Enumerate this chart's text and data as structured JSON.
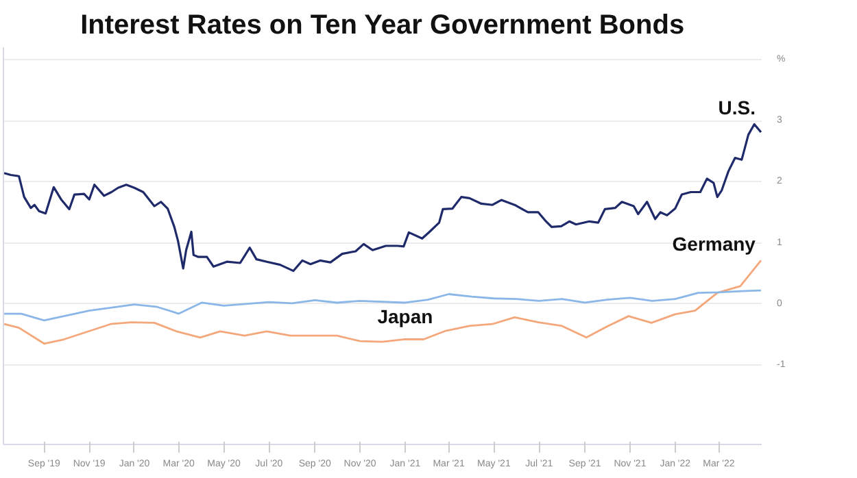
{
  "chart_data": {
    "type": "line",
    "title": "Interest Rates on Ten Year Government Bonds",
    "xlim": [
      "2019-07-08",
      "2022-04-28"
    ],
    "xticks": [
      {
        "value": "2019-09-01",
        "label": "Sep '19"
      },
      {
        "value": "2019-11-01",
        "label": "Nov '19"
      },
      {
        "value": "2020-01-01",
        "label": "Jan '20"
      },
      {
        "value": "2020-03-01",
        "label": "Mar '20"
      },
      {
        "value": "2020-05-01",
        "label": "May '20"
      },
      {
        "value": "2020-07-01",
        "label": "Jul '20"
      },
      {
        "value": "2020-09-01",
        "label": "Sep '20"
      },
      {
        "value": "2020-11-01",
        "label": "Nov '20"
      },
      {
        "value": "2021-01-01",
        "label": "Jan '21"
      },
      {
        "value": "2021-03-01",
        "label": "Mar '21"
      },
      {
        "value": "2021-05-01",
        "label": "May '21"
      },
      {
        "value": "2021-07-01",
        "label": "Jul '21"
      },
      {
        "value": "2021-09-01",
        "label": "Sep '21"
      },
      {
        "value": "2021-11-01",
        "label": "Nov '21"
      },
      {
        "value": "2022-01-01",
        "label": "Jan '22"
      },
      {
        "value": "2022-03-01",
        "label": "Mar '22"
      }
    ],
    "ylim": [
      -2.3,
      4.2
    ],
    "yticks": [
      -1,
      0,
      1,
      2,
      3,
      {
        "value": 4,
        "label": "%"
      }
    ],
    "grid": "y",
    "marker": "none",
    "line_style": "solid",
    "series": [
      {
        "name": "U.S.",
        "color": "#1f2a6b",
        "x": [
          "2019-07-09",
          "2019-07-18",
          "2019-07-29",
          "2019-08-05",
          "2019-08-14",
          "2019-08-19",
          "2019-08-25",
          "2019-09-03",
          "2019-09-14",
          "2019-09-24",
          "2019-10-05",
          "2019-10-12",
          "2019-10-25",
          "2019-11-01",
          "2019-11-08",
          "2019-11-21",
          "2019-12-01",
          "2019-12-10",
          "2019-12-21",
          "2020-01-01",
          "2020-01-13",
          "2020-01-28",
          "2020-02-06",
          "2020-02-15",
          "2020-02-24",
          "2020-02-29",
          "2020-03-07",
          "2020-03-11",
          "2020-03-18",
          "2020-03-21",
          "2020-03-27",
          "2020-04-08",
          "2020-04-17",
          "2020-05-05",
          "2020-05-23",
          "2020-06-05",
          "2020-06-14",
          "2020-06-28",
          "2020-07-16",
          "2020-08-03",
          "2020-08-15",
          "2020-08-26",
          "2020-09-08",
          "2020-09-22",
          "2020-10-08",
          "2020-10-26",
          "2020-11-06",
          "2020-11-18",
          "2020-12-06",
          "2020-12-22",
          "2020-12-30",
          "2021-01-06",
          "2021-01-24",
          "2021-02-03",
          "2021-02-16",
          "2021-02-21",
          "2021-03-06",
          "2021-03-18",
          "2021-03-29",
          "2021-04-14",
          "2021-04-29",
          "2021-05-11",
          "2021-05-29",
          "2021-06-16",
          "2021-06-30",
          "2021-07-09",
          "2021-07-18",
          "2021-07-31",
          "2021-08-11",
          "2021-08-20",
          "2021-09-07",
          "2021-09-19",
          "2021-09-28",
          "2021-10-12",
          "2021-10-21",
          "2021-11-06",
          "2021-11-12",
          "2021-11-24",
          "2021-12-05",
          "2021-12-12",
          "2021-12-21",
          "2022-01-01",
          "2022-01-10",
          "2022-01-22",
          "2022-02-04",
          "2022-02-13",
          "2022-02-22",
          "2022-02-27",
          "2022-03-05",
          "2022-03-14",
          "2022-03-23",
          "2022-04-01",
          "2022-04-10",
          "2022-04-18",
          "2022-04-27"
        ],
        "values": [
          2.14,
          2.11,
          2.09,
          1.75,
          1.57,
          1.62,
          1.52,
          1.48,
          1.91,
          1.71,
          1.55,
          1.79,
          1.8,
          1.71,
          1.95,
          1.77,
          1.83,
          1.9,
          1.95,
          1.9,
          1.83,
          1.6,
          1.67,
          1.56,
          1.26,
          1.03,
          0.58,
          0.88,
          1.18,
          0.8,
          0.77,
          0.77,
          0.61,
          0.69,
          0.67,
          0.92,
          0.73,
          0.69,
          0.64,
          0.54,
          0.71,
          0.65,
          0.71,
          0.68,
          0.82,
          0.86,
          0.98,
          0.88,
          0.95,
          0.95,
          0.94,
          1.17,
          1.07,
          1.18,
          1.33,
          1.55,
          1.56,
          1.75,
          1.73,
          1.64,
          1.62,
          1.7,
          1.62,
          1.5,
          1.5,
          1.37,
          1.26,
          1.27,
          1.35,
          1.3,
          1.35,
          1.33,
          1.55,
          1.57,
          1.67,
          1.6,
          1.47,
          1.67,
          1.39,
          1.5,
          1.45,
          1.56,
          1.79,
          1.83,
          1.83,
          2.05,
          1.98,
          1.75,
          1.86,
          2.17,
          2.39,
          2.36,
          2.77,
          2.94,
          2.81
        ]
      },
      {
        "name": "Germany",
        "color": "#f4a77a",
        "x": [
          "2019-07-09",
          "2019-07-29",
          "2019-09-01",
          "2019-09-28",
          "2019-11-30",
          "2019-12-28",
          "2020-01-28",
          "2020-02-27",
          "2020-03-30",
          "2020-04-26",
          "2020-05-29",
          "2020-06-28",
          "2020-07-30",
          "2020-10-01",
          "2020-11-01",
          "2020-12-01",
          "2020-12-30",
          "2021-01-26",
          "2021-02-25",
          "2021-03-29",
          "2021-04-29",
          "2021-05-29",
          "2021-06-30",
          "2021-08-01",
          "2021-09-03",
          "2021-10-01",
          "2021-10-30",
          "2021-11-30",
          "2022-01-01",
          "2022-01-28",
          "2022-02-27",
          "2022-03-30",
          "2022-04-27"
        ],
        "values": [
          -0.33,
          -0.39,
          -0.65,
          -0.58,
          -0.33,
          -0.3,
          -0.31,
          -0.45,
          -0.55,
          -0.45,
          -0.52,
          -0.45,
          -0.52,
          -0.52,
          -0.61,
          -0.62,
          -0.58,
          -0.58,
          -0.44,
          -0.36,
          -0.33,
          -0.22,
          -0.3,
          -0.36,
          -0.55,
          -0.37,
          -0.2,
          -0.31,
          -0.17,
          -0.11,
          0.18,
          0.29,
          0.71
        ]
      },
      {
        "name": "Japan",
        "color": "#8ab6e8",
        "x": [
          "2019-07-09",
          "2019-08-01",
          "2019-09-01",
          "2019-11-01",
          "2020-01-01",
          "2020-02-01",
          "2020-03-01",
          "2020-04-01",
          "2020-05-01",
          "2020-07-01",
          "2020-08-01",
          "2020-09-01",
          "2020-10-01",
          "2020-11-01",
          "2021-01-01",
          "2021-02-01",
          "2021-03-01",
          "2021-04-01",
          "2021-05-01",
          "2021-06-01",
          "2021-07-01",
          "2021-08-01",
          "2021-09-01",
          "2021-10-01",
          "2021-11-01",
          "2021-12-01",
          "2022-01-01",
          "2022-02-01",
          "2022-03-01",
          "2022-04-01",
          "2022-04-27"
        ],
        "values": [
          -0.16,
          -0.16,
          -0.27,
          -0.11,
          -0.01,
          -0.05,
          -0.16,
          0.02,
          -0.03,
          0.03,
          0.01,
          0.06,
          0.02,
          0.05,
          0.02,
          0.07,
          0.16,
          0.12,
          0.09,
          0.08,
          0.05,
          0.08,
          0.02,
          0.07,
          0.1,
          0.05,
          0.08,
          0.18,
          0.19,
          0.21,
          0.22
        ]
      }
    ]
  }
}
